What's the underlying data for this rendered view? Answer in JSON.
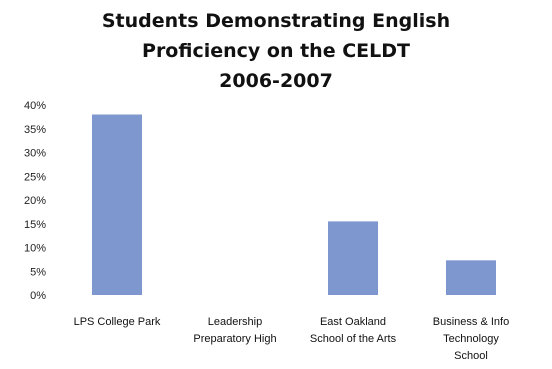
{
  "chart_data": {
    "type": "bar",
    "title_lines": [
      "Students Demonstrating English",
      "Proficiency on the CELDT",
      "2006-2007"
    ],
    "categories": [
      [
        "LPS College Park"
      ],
      [
        "Leadership",
        "Preparatory High"
      ],
      [
        "East Oakland",
        "School of the Arts"
      ],
      [
        "Business & Info",
        "Technology",
        "School"
      ]
    ],
    "values": [
      38,
      0,
      15.5,
      7.3
    ],
    "ylim": [
      0,
      40
    ],
    "yticks": [
      0,
      5,
      10,
      15,
      20,
      25,
      30,
      35,
      40
    ],
    "ytick_labels": [
      "0%",
      "5%",
      "10%",
      "15%",
      "20%",
      "25%",
      "30%",
      "35%",
      "40%"
    ],
    "grid": false,
    "bar_color": "#7f97cf"
  }
}
